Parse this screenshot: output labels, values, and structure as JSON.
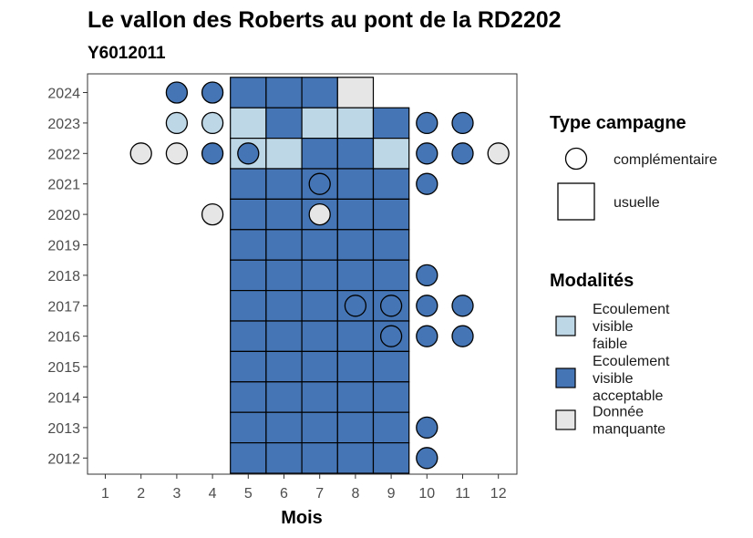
{
  "chart_data": {
    "type": "heatmap",
    "title": "Le vallon des Roberts au pont de la RD2202",
    "subtitle": "Y6012011",
    "xlabel": "Mois",
    "ylabel": "",
    "x_ticks": [
      "1",
      "2",
      "3",
      "4",
      "5",
      "6",
      "7",
      "8",
      "9",
      "10",
      "11",
      "12"
    ],
    "y_ticks": [
      "2012",
      "2013",
      "2014",
      "2015",
      "2016",
      "2017",
      "2018",
      "2019",
      "2020",
      "2021",
      "2022",
      "2023",
      "2024"
    ],
    "legend_shape": {
      "title": "Type campagne",
      "items": [
        {
          "key": "complementaire",
          "label": "complémentaire",
          "shape": "circle"
        },
        {
          "key": "usuelle",
          "label": "usuelle",
          "shape": "square"
        }
      ]
    },
    "legend_fill": {
      "title": "Modalités",
      "items": [
        {
          "key": "faible",
          "label_lines": [
            "Ecoulement",
            "visible",
            "faible"
          ],
          "color": "#bdd7e7"
        },
        {
          "key": "acceptable",
          "label_lines": [
            "Ecoulement",
            "visible",
            "acceptable"
          ],
          "color": "#4575b4"
        },
        {
          "key": "manquante",
          "label_lines": [
            "Donnée",
            "manquante"
          ],
          "color": "#e6e6e6"
        }
      ]
    },
    "colors": {
      "faible": "#bdd7e7",
      "acceptable": "#4575b4",
      "manquante": "#e6e6e6"
    },
    "usuelle": [
      {
        "year": 2024,
        "month": 5,
        "m": "acceptable"
      },
      {
        "year": 2024,
        "month": 6,
        "m": "acceptable"
      },
      {
        "year": 2024,
        "month": 7,
        "m": "acceptable"
      },
      {
        "year": 2024,
        "month": 8,
        "m": "manquante"
      },
      {
        "year": 2023,
        "month": 5,
        "m": "faible"
      },
      {
        "year": 2023,
        "month": 6,
        "m": "acceptable"
      },
      {
        "year": 2023,
        "month": 7,
        "m": "faible"
      },
      {
        "year": 2023,
        "month": 8,
        "m": "faible"
      },
      {
        "year": 2023,
        "month": 9,
        "m": "acceptable"
      },
      {
        "year": 2022,
        "month": 5,
        "m": "faible"
      },
      {
        "year": 2022,
        "month": 6,
        "m": "faible"
      },
      {
        "year": 2022,
        "month": 7,
        "m": "acceptable"
      },
      {
        "year": 2022,
        "month": 8,
        "m": "acceptable"
      },
      {
        "year": 2022,
        "month": 9,
        "m": "faible"
      },
      {
        "year": 2021,
        "months": [
          5,
          6,
          7,
          8,
          9
        ],
        "m": "acceptable"
      },
      {
        "year": 2020,
        "months": [
          5,
          6,
          7,
          8,
          9
        ],
        "m": "acceptable"
      },
      {
        "year": 2019,
        "months": [
          5,
          6,
          7,
          8,
          9
        ],
        "m": "acceptable"
      },
      {
        "year": 2018,
        "months": [
          5,
          6,
          7,
          8,
          9
        ],
        "m": "acceptable"
      },
      {
        "year": 2017,
        "months": [
          5,
          6,
          7,
          8,
          9
        ],
        "m": "acceptable"
      },
      {
        "year": 2016,
        "months": [
          5,
          6,
          7,
          8,
          9
        ],
        "m": "acceptable"
      },
      {
        "year": 2015,
        "months": [
          5,
          6,
          7,
          8,
          9
        ],
        "m": "acceptable"
      },
      {
        "year": 2014,
        "months": [
          5,
          6,
          7,
          8,
          9
        ],
        "m": "acceptable"
      },
      {
        "year": 2013,
        "months": [
          5,
          6,
          7,
          8,
          9
        ],
        "m": "acceptable"
      },
      {
        "year": 2012,
        "months": [
          5,
          6,
          7,
          8,
          9
        ],
        "m": "acceptable"
      }
    ],
    "complementaire": [
      {
        "year": 2024,
        "month": 3,
        "m": "acceptable"
      },
      {
        "year": 2024,
        "month": 4,
        "m": "acceptable"
      },
      {
        "year": 2023,
        "month": 3,
        "m": "faible"
      },
      {
        "year": 2023,
        "month": 4,
        "m": "faible"
      },
      {
        "year": 2023,
        "month": 10,
        "m": "acceptable"
      },
      {
        "year": 2023,
        "month": 11,
        "m": "acceptable"
      },
      {
        "year": 2022,
        "month": 2,
        "m": "manquante"
      },
      {
        "year": 2022,
        "month": 3,
        "m": "manquante"
      },
      {
        "year": 2022,
        "month": 4,
        "m": "acceptable"
      },
      {
        "year": 2022,
        "month": 5,
        "m": "acceptable"
      },
      {
        "year": 2022,
        "month": 10,
        "m": "acceptable"
      },
      {
        "year": 2022,
        "month": 11,
        "m": "acceptable"
      },
      {
        "year": 2022,
        "month": 12,
        "m": "manquante"
      },
      {
        "year": 2021,
        "month": 7,
        "m": "acceptable"
      },
      {
        "year": 2021,
        "month": 10,
        "m": "acceptable"
      },
      {
        "year": 2020,
        "month": 4,
        "m": "manquante"
      },
      {
        "year": 2020,
        "month": 7,
        "m": "manquante"
      },
      {
        "year": 2018,
        "month": 10,
        "m": "acceptable"
      },
      {
        "year": 2017,
        "month": 8,
        "m": "acceptable"
      },
      {
        "year": 2017,
        "month": 9,
        "m": "acceptable"
      },
      {
        "year": 2017,
        "month": 10,
        "m": "acceptable"
      },
      {
        "year": 2017,
        "month": 11,
        "m": "acceptable"
      },
      {
        "year": 2016,
        "month": 9,
        "m": "acceptable"
      },
      {
        "year": 2016,
        "month": 10,
        "m": "acceptable"
      },
      {
        "year": 2016,
        "month": 11,
        "m": "acceptable"
      },
      {
        "year": 2013,
        "month": 10,
        "m": "acceptable"
      },
      {
        "year": 2012,
        "month": 10,
        "m": "acceptable"
      }
    ]
  }
}
